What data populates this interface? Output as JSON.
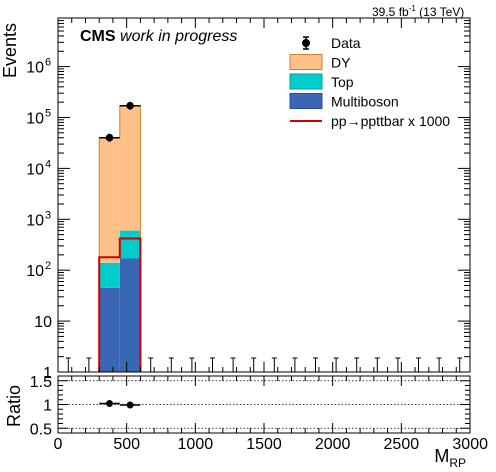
{
  "header": {
    "lumi_value": "39.5 fb",
    "lumi_exp": "-1",
    "lumi_energy": "(13 TeV)"
  },
  "labels": {
    "cms": "CMS",
    "status": "work in progress"
  },
  "chart_data": [
    {
      "type": "bar",
      "panel": "main",
      "ylabel": "Events",
      "yscale": "log",
      "ylim": [
        1,
        9000000
      ],
      "xlim": [
        0,
        3000
      ],
      "bin_width": 150,
      "bin_edges": [
        0,
        150,
        300,
        450,
        600,
        750,
        900,
        1050,
        1200,
        1350,
        1500,
        1650,
        1800,
        1950,
        2100,
        2250,
        2400,
        2550,
        2700,
        2850,
        3000
      ],
      "stack": true,
      "series": [
        {
          "name": "Multiboson",
          "color": "#3a67b3",
          "bins": [
            {
              "lo": 300,
              "hi": 450,
              "value": 45
            },
            {
              "lo": 450,
              "hi": 600,
              "value": 170
            }
          ]
        },
        {
          "name": "Top",
          "color": "#00cccc",
          "bins": [
            {
              "lo": 300,
              "hi": 450,
              "value": 95
            },
            {
              "lo": 450,
              "hi": 600,
              "value": 430
            }
          ]
        },
        {
          "name": "DY",
          "color": "#ffc08a",
          "bins": [
            {
              "lo": 300,
              "hi": 450,
              "value": 40000
            },
            {
              "lo": 450,
              "hi": 600,
              "value": 170000
            }
          ]
        }
      ],
      "signal": {
        "name": "pp→ppttbar x 1000",
        "color": "#cc0000",
        "bins": [
          {
            "lo": 300,
            "hi": 450,
            "value": 180
          },
          {
            "lo": 450,
            "hi": 600,
            "value": 420
          }
        ]
      },
      "data": {
        "name": "Data",
        "points": [
          {
            "x": 375,
            "y": 40000
          },
          {
            "x": 525,
            "y": 170000
          }
        ],
        "empty_bins_x": [
          75,
          225,
          675,
          825,
          975,
          1125,
          1275,
          1425,
          1575,
          1725,
          1875,
          2025,
          2175,
          2325,
          2475,
          2625,
          2775,
          2925
        ]
      },
      "yticks": [
        {
          "value": 1,
          "label": "1"
        },
        {
          "value": 10,
          "label": "10"
        },
        {
          "value": 100,
          "label": "10",
          "exp": "2"
        },
        {
          "value": 1000,
          "label": "10",
          "exp": "3"
        },
        {
          "value": 10000,
          "label": "10",
          "exp": "4"
        },
        {
          "value": 100000,
          "label": "10",
          "exp": "5"
        },
        {
          "value": 1000000,
          "label": "10",
          "exp": "6"
        }
      ],
      "legend": "top-right"
    },
    {
      "type": "scatter",
      "panel": "ratio",
      "ylabel": "Ratio",
      "xlabel": "M",
      "xlabel_sub": "RP",
      "ylim": [
        0.4,
        1.6
      ],
      "xlim": [
        0,
        3000
      ],
      "yticks": [
        {
          "value": 0.5,
          "label": "0.5"
        },
        {
          "value": 1,
          "label": "1"
        },
        {
          "value": 1.5,
          "label": "1.5"
        }
      ],
      "xticks": [
        {
          "value": 0,
          "label": "0"
        },
        {
          "value": 500,
          "label": "500"
        },
        {
          "value": 1000,
          "label": "1000"
        },
        {
          "value": 1500,
          "label": "1500"
        },
        {
          "value": 2000,
          "label": "2000"
        },
        {
          "value": 2500,
          "label": "2500"
        },
        {
          "value": 3000,
          "label": "3000"
        }
      ],
      "reference_lines": [
        0.5,
        1.0,
        1.5
      ],
      "uncertainty_band": [
        {
          "lo": 300,
          "hi": 450,
          "low": 0.96,
          "high": 1.04
        },
        {
          "lo": 450,
          "hi": 600,
          "low": 0.97,
          "high": 1.03
        }
      ],
      "points": [
        {
          "x": 375,
          "y": 1.02,
          "xerr": 75,
          "yerr": 0.01
        },
        {
          "x": 525,
          "y": 0.99,
          "xerr": 75,
          "yerr": 0.005
        }
      ]
    }
  ]
}
